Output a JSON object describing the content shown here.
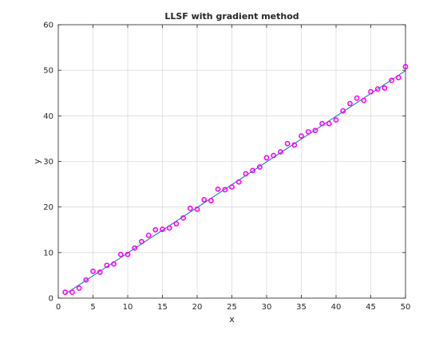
{
  "chart_data": {
    "type": "scatter",
    "title": "LLSF with gradient method",
    "xlabel": "x",
    "ylabel": "y",
    "xlim": [
      0,
      50
    ],
    "ylim": [
      0,
      60
    ],
    "xticks": [
      0,
      5,
      10,
      15,
      20,
      25,
      30,
      35,
      40,
      45,
      50
    ],
    "yticks": [
      0,
      10,
      20,
      30,
      40,
      50,
      60
    ],
    "grid": true,
    "series": [
      {
        "kind": "markers",
        "marker": "circle",
        "color": "#ff00ff",
        "x": [
          1,
          2,
          3,
          4,
          5,
          6,
          7,
          8,
          9,
          10,
          11,
          12,
          13,
          14,
          15,
          16,
          17,
          18,
          19,
          20,
          21,
          22,
          23,
          24,
          25,
          26,
          27,
          28,
          29,
          30,
          31,
          32,
          33,
          34,
          35,
          36,
          37,
          38,
          39,
          40,
          41,
          42,
          43,
          44,
          45,
          46,
          47,
          48,
          49,
          50
        ],
        "y": [
          1.3,
          1.3,
          2.2,
          4.0,
          5.9,
          5.7,
          7.2,
          7.5,
          9.6,
          9.6,
          11.0,
          12.4,
          13.8,
          15.0,
          15.1,
          15.4,
          16.3,
          17.6,
          19.7,
          19.5,
          21.6,
          21.4,
          23.9,
          23.8,
          24.4,
          25.5,
          27.3,
          28.0,
          28.8,
          30.8,
          31.3,
          32.1,
          33.9,
          33.6,
          35.6,
          36.5,
          36.8,
          38.3,
          38.3,
          39.1,
          41.1,
          42.7,
          43.9,
          43.4,
          45.3,
          45.9,
          46.1,
          47.8,
          48.4,
          50.8
        ]
      },
      {
        "kind": "line",
        "color": "#0072bd",
        "x": [
          1,
          50
        ],
        "y": [
          0.9,
          49.9
        ]
      }
    ]
  }
}
